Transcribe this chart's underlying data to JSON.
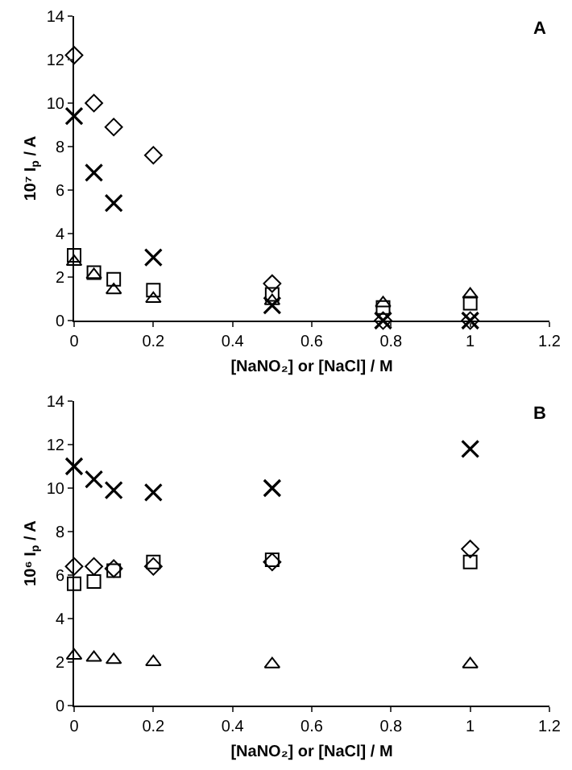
{
  "chart_data": [
    {
      "type": "scatter",
      "xlabel": "[NaNO₂] or [NaCl] / M",
      "ylabel": "10⁷ I$_{p}$ / A",
      "annotations": [
        "A"
      ],
      "x": [
        0,
        0.05,
        0.1,
        0.2,
        0.5,
        0.78,
        1
      ],
      "series": [
        {
          "color": "#000000",
          "marker": "diamond",
          "values": [
            12.2,
            10.0,
            8.9,
            7.6,
            1.7,
            0,
            0
          ]
        },
        {
          "color": "#000000",
          "marker": "cross",
          "values": [
            9.4,
            6.8,
            5.4,
            2.9,
            0.7,
            0,
            0
          ]
        },
        {
          "color": "#000000",
          "marker": "square",
          "values": [
            3.0,
            2.2,
            1.9,
            1.4,
            1.2,
            0.6,
            0.8
          ]
        },
        {
          "color": "#000000",
          "marker": "triangle",
          "values": [
            2.7,
            2.1,
            1.4,
            1.0,
            0.9,
            0.8,
            1.2
          ]
        }
      ],
      "xlim": [
        0,
        1.2
      ],
      "xticks": [
        0,
        0.2,
        0.4,
        0.6,
        0.8,
        1,
        1.2
      ],
      "ylim": [
        0,
        14
      ],
      "yticks": [
        0,
        2,
        4,
        6,
        8,
        10,
        12,
        14
      ],
      "grid": false
    },
    {
      "type": "scatter",
      "xlabel": "[NaNO₂] or [NaCl] / M",
      "ylabel": "10⁶ I$_{p}$ / A",
      "annotations": [
        "B"
      ],
      "x": [
        0,
        0.05,
        0.1,
        0.2,
        0.5,
        1
      ],
      "series": [
        {
          "color": "#000000",
          "marker": "cross",
          "values": [
            11.0,
            10.4,
            9.9,
            9.8,
            10.0,
            11.8
          ]
        },
        {
          "color": "#000000",
          "marker": "diamond",
          "values": [
            6.4,
            6.4,
            6.3,
            6.4,
            6.6,
            7.2
          ]
        },
        {
          "color": "#000000",
          "marker": "square",
          "values": [
            5.6,
            5.7,
            6.2,
            6.6,
            6.7,
            6.6
          ]
        },
        {
          "color": "#000000",
          "marker": "triangle",
          "values": [
            2.3,
            2.2,
            2.1,
            2.0,
            1.9,
            1.9
          ]
        }
      ],
      "xlim": [
        0,
        1.2
      ],
      "xticks": [
        0,
        0.2,
        0.4,
        0.6,
        0.8,
        1,
        1.2
      ],
      "ylim": [
        0,
        14
      ],
      "yticks": [
        0,
        2,
        4,
        6,
        8,
        10,
        12,
        14
      ],
      "grid": false
    }
  ]
}
